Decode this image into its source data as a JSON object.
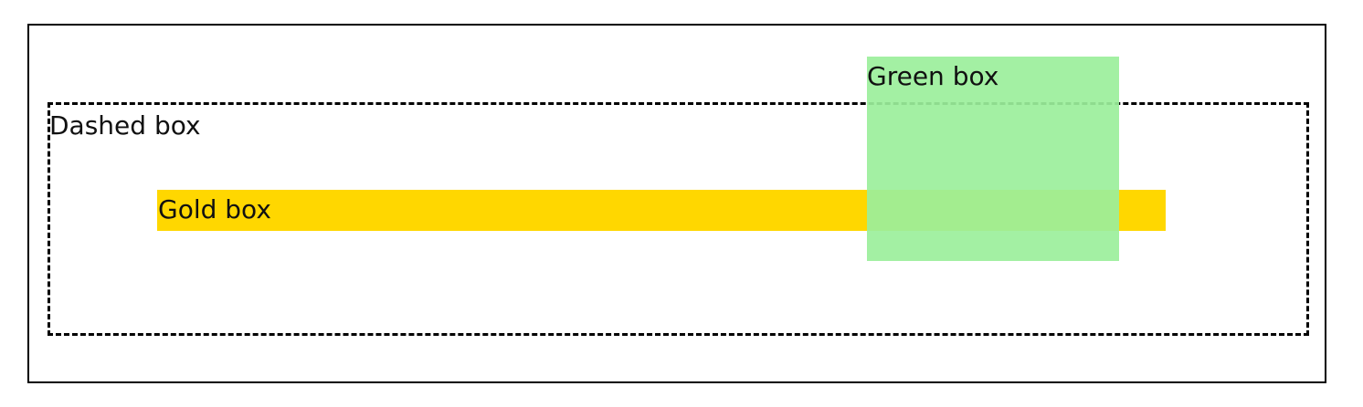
{
  "diagram": {
    "dashed_box": {
      "label": "Dashed box"
    },
    "gold_box": {
      "label": "Gold box",
      "color": "#FFD700"
    },
    "green_box": {
      "label": "Green box",
      "color": "#9BEF9B"
    }
  }
}
